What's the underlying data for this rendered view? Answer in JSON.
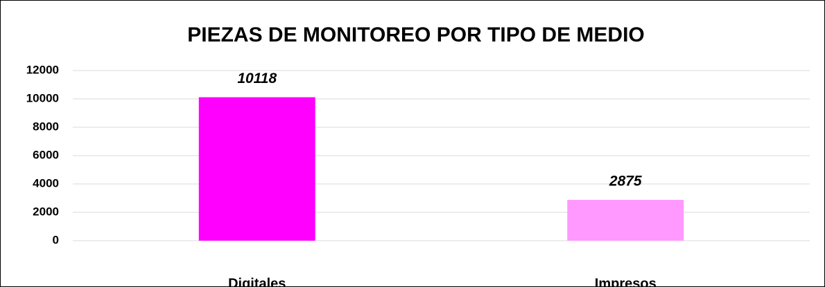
{
  "chart_data": {
    "type": "bar",
    "title": "PIEZAS DE MONITOREO POR TIPO DE MEDIO",
    "categories": [
      "Digitales",
      "Impresos"
    ],
    "values": [
      10118,
      2875
    ],
    "colors": [
      "#ff00ff",
      "#ff99ff"
    ],
    "ylim": [
      0,
      12000
    ],
    "yticks": [
      0,
      2000,
      4000,
      6000,
      8000,
      10000,
      12000
    ],
    "grid": true
  }
}
